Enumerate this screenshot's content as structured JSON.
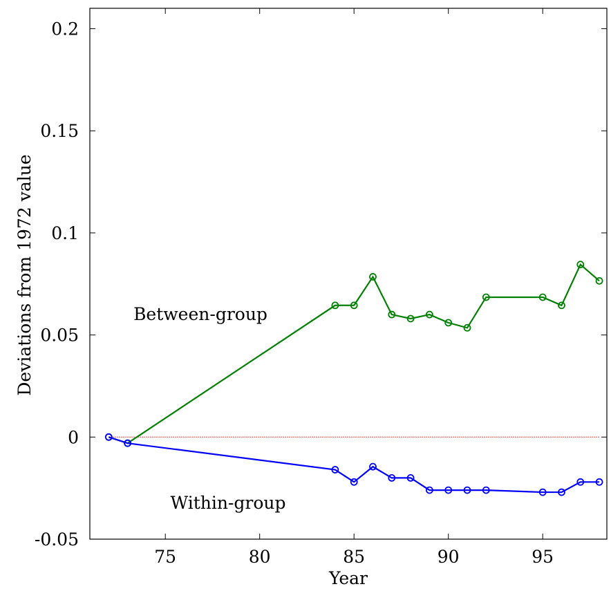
{
  "chart_data": {
    "type": "line",
    "xlabel": "Year",
    "ylabel": "Deviations from 1972 value",
    "xlim": [
      71,
      98.4
    ],
    "ylim": [
      -0.05,
      0.21
    ],
    "xticks": [
      75,
      80,
      85,
      90,
      95
    ],
    "xtick_labels": [
      "75",
      "80",
      "85",
      "90",
      "95"
    ],
    "yticks": [
      -0.05,
      0,
      0.05,
      0.1,
      0.15,
      0.2
    ],
    "ytick_labels": [
      "-0.05",
      "0",
      "0.05",
      "0.1",
      "0.15",
      "0.2"
    ],
    "grid": false,
    "reference_line": {
      "y": 0,
      "color": "#ff0000",
      "style": "dotted"
    },
    "series": [
      {
        "name": "Between-group",
        "color": "#008000",
        "marker": "circle",
        "x": [
          72,
          73,
          84,
          85,
          86,
          87,
          88,
          89,
          90,
          91,
          92,
          95,
          96,
          97,
          98
        ],
        "y": [
          0.0,
          -0.003,
          0.0645,
          0.0645,
          0.0785,
          0.06,
          0.058,
          0.06,
          0.056,
          0.0535,
          0.0685,
          0.0685,
          0.0645,
          0.0845,
          0.0765
        ]
      },
      {
        "name": "Within-group",
        "color": "#0000ff",
        "marker": "circle",
        "x": [
          72,
          73,
          84,
          85,
          86,
          87,
          88,
          89,
          90,
          91,
          92,
          95,
          96,
          97,
          98
        ],
        "y": [
          0.0,
          -0.003,
          -0.016,
          -0.022,
          -0.0145,
          -0.02,
          -0.02,
          -0.026,
          -0.026,
          -0.026,
          -0.026,
          -0.027,
          -0.027,
          -0.022,
          -0.022
        ]
      }
    ]
  }
}
